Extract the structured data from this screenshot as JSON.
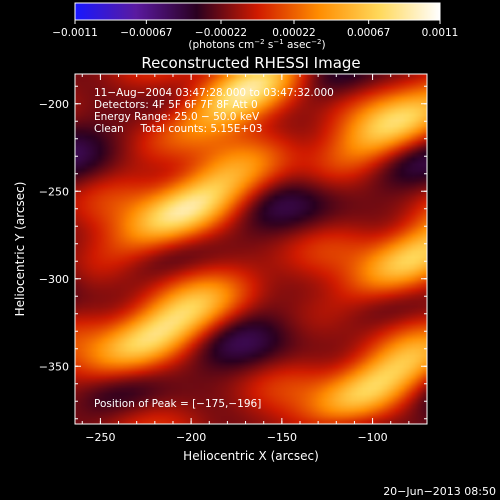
{
  "chart_data": {
    "type": "heatmap",
    "title": "Reconstructed RHESSI Image",
    "xlabel": "Heliocentric X (arcsec)",
    "ylabel": "Heliocentric Y (arcsec)",
    "xlim": [
      -264,
      -70
    ],
    "ylim": [
      -383,
      -183
    ],
    "x_ticks": [
      -250,
      -200,
      -150,
      -100
    ],
    "y_ticks": [
      -200,
      -250,
      -300,
      -350
    ],
    "x_tick_labels": [
      "−250",
      "−200",
      "−150",
      "−100"
    ],
    "y_tick_labels": [
      "−200",
      "−250",
      "−300",
      "−350"
    ],
    "colorbar": {
      "min": -0.0011,
      "max": 0.0011,
      "ticks": [
        -0.0011,
        -0.00067,
        -0.00022,
        0.00022,
        0.00067,
        0.0011
      ],
      "tick_labels": [
        "−0.0011",
        "−0.00067",
        "−0.00022",
        "0.00022",
        "0.00067",
        "0.0011"
      ],
      "unit_label": "(photons cm",
      "unit_sup1": "−2",
      "unit_mid": " s",
      "unit_sup2": "−1",
      "unit_mid2": " asec",
      "unit_sup3": "−2",
      "unit_end": ")",
      "colormap": [
        "#1818ff",
        "#5a1aa0",
        "#2a0020",
        "#d01a00",
        "#ff8c00",
        "#ffd85a",
        "#ffffff"
      ]
    },
    "annotations": {
      "time": "11−Aug−2004 03:47:28.000 to 03:47:32.000",
      "detectors": "Detectors: 4F 5F 6F 7F 8F  Att 0",
      "energy": "Energy Range: 25.0 − 50.0 keV",
      "clean": "Clean     Total counts: 5.15E+03",
      "peak": "Position of Peak = [−175,−196]"
    },
    "peak_position": [
      -175,
      -196
    ],
    "bright_sources": [
      {
        "x": -175,
        "y": -196,
        "relative_intensity": 1.0
      },
      {
        "x": -205,
        "y": -262,
        "relative_intensity": 0.95
      },
      {
        "x": -220,
        "y": -332,
        "relative_intensity": 0.85
      },
      {
        "x": -80,
        "y": -290,
        "relative_intensity": 0.8
      },
      {
        "x": -100,
        "y": -362,
        "relative_intensity": 0.8
      },
      {
        "x": -85,
        "y": -212,
        "relative_intensity": 0.7
      }
    ],
    "footer": "20−Jun−2013 08:50"
  }
}
